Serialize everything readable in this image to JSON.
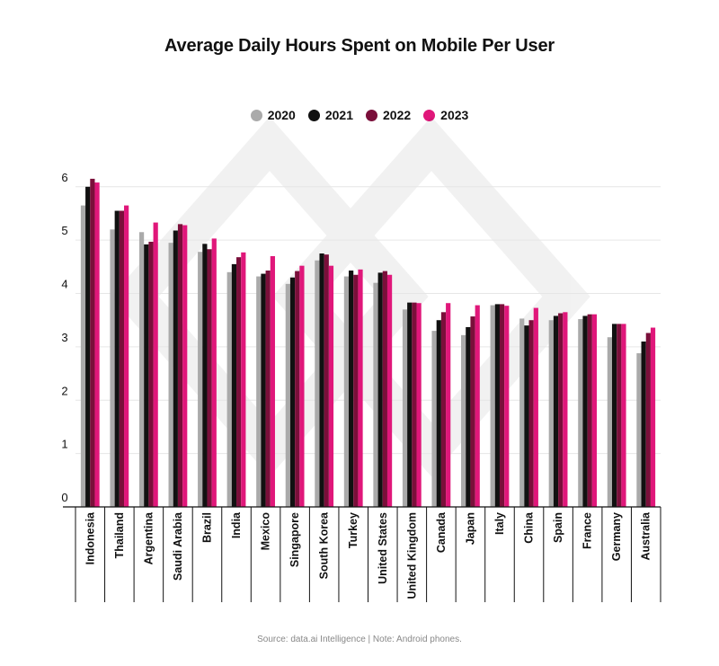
{
  "chart_data": {
    "type": "bar",
    "title": "Average Daily Hours Spent on Mobile Per User",
    "source": "Source: data.ai Intelligence | Note: Android phones.",
    "ylim": [
      0,
      6.3
    ],
    "yticks": [
      "0",
      "1",
      "2",
      "3",
      "4",
      "5",
      "6"
    ],
    "grid": true,
    "legend": "top-center",
    "categories": [
      "Indonesia",
      "Thailand",
      "Argentina",
      "Saudi Arabia",
      "Brazil",
      "India",
      "Mexico",
      "Singapore",
      "South Korea",
      "Turkey",
      "United States",
      "United Kingdom",
      "Canada",
      "Japan",
      "Italy",
      "China",
      "Spain",
      "France",
      "Germany",
      "Australia"
    ],
    "series": [
      {
        "name": "2020",
        "color": "#aaaaaa",
        "values": [
          5.65,
          5.2,
          5.15,
          4.95,
          4.78,
          4.4,
          4.32,
          4.18,
          4.62,
          4.32,
          4.2,
          3.7,
          3.3,
          3.22,
          3.78,
          3.53,
          3.5,
          3.52,
          3.18,
          2.88
        ]
      },
      {
        "name": "2021",
        "color": "#111111",
        "values": [
          6.0,
          5.55,
          4.92,
          5.18,
          4.93,
          4.55,
          4.37,
          4.3,
          4.75,
          4.43,
          4.39,
          3.83,
          3.5,
          3.37,
          3.8,
          3.4,
          3.58,
          3.58,
          3.43,
          3.1
        ]
      },
      {
        "name": "2022",
        "color": "#7a0f3a",
        "values": [
          6.15,
          5.55,
          4.97,
          5.3,
          4.83,
          4.68,
          4.43,
          4.42,
          4.73,
          4.35,
          4.42,
          3.83,
          3.65,
          3.57,
          3.8,
          3.5,
          3.63,
          3.61,
          3.43,
          3.26
        ]
      },
      {
        "name": "2023",
        "color": "#e0177a",
        "values": [
          6.08,
          5.65,
          5.33,
          5.28,
          5.03,
          4.77,
          4.7,
          4.52,
          4.52,
          4.45,
          4.35,
          3.82,
          3.82,
          3.78,
          3.77,
          3.73,
          3.65,
          3.61,
          3.43,
          3.36
        ]
      }
    ]
  }
}
